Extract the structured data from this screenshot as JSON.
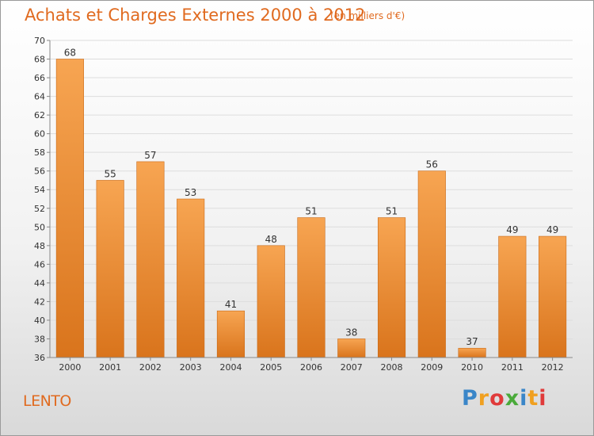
{
  "title": "Achats et Charges Externes 2000 à 2012",
  "subtitle": "(en milliers d'€)",
  "place": "LENTO",
  "logo": {
    "letters": [
      "P",
      "r",
      "o",
      "x",
      "i",
      "t",
      "i"
    ],
    "colors": [
      "#3a86c8",
      "#f0a020",
      "#e03a3a",
      "#4aaa3a",
      "#3a86c8",
      "#f0a020",
      "#e03a3a"
    ]
  },
  "colors": {
    "accent": "#e06a1f",
    "bar_light": "#f7a552",
    "bar_dark": "#d9771f"
  },
  "chart_data": {
    "type": "bar",
    "categories": [
      "2000",
      "2001",
      "2002",
      "2003",
      "2004",
      "2005",
      "2006",
      "2007",
      "2008",
      "2009",
      "2010",
      "2011",
      "2012"
    ],
    "values": [
      68,
      55,
      57,
      53,
      41,
      48,
      51,
      38,
      51,
      56,
      37,
      49,
      49
    ],
    "ylim": [
      36,
      70
    ],
    "yticks": [
      36,
      38,
      40,
      42,
      44,
      46,
      48,
      50,
      52,
      54,
      56,
      58,
      60,
      62,
      64,
      66,
      68,
      70
    ],
    "grid": true
  }
}
